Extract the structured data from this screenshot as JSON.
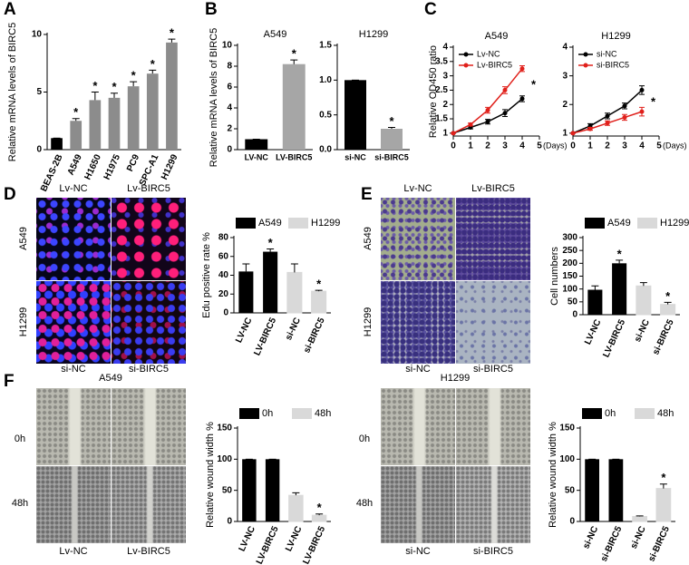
{
  "figure": {
    "panel_letters": [
      "A",
      "B",
      "C",
      "D",
      "E",
      "F"
    ],
    "image_groups": [
      {
        "columns": [
          "Lv-NC",
          "Lv-BIRC5"
        ],
        "rows": [
          "A549",
          "H1299"
        ],
        "bottom": [
          "si-NC",
          "si-BIRC5"
        ]
      },
      {
        "columns": [
          "Lv-NC",
          "Lv-BIRC5"
        ],
        "rows": [
          "A549",
          "H1299"
        ],
        "bottom": [
          "si-NC",
          "si-BIRC5"
        ]
      },
      {
        "title": "A549",
        "rows": [
          "0h",
          "48h"
        ],
        "bottom": [
          "Lv-NC",
          "Lv-BIRC5"
        ]
      },
      {
        "title": "H1299",
        "rows": [
          "0h",
          "48h"
        ],
        "bottom": [
          "si-NC",
          "si-BIRC5"
        ]
      }
    ]
  },
  "chart_data": [
    {
      "type": "bar",
      "ylabel": "Relative mRNA levels of BIRC5",
      "categories": [
        "BEAS-2B",
        "A549",
        "H1650",
        "H1975",
        "PC9",
        "SPC-A1",
        "H1299"
      ],
      "values": [
        1,
        2.5,
        4.3,
        4.5,
        5.5,
        6.6,
        9.3
      ],
      "errors": [
        0,
        0.2,
        0.7,
        0.4,
        0.4,
        0.3,
        0.3
      ],
      "annotations": [
        null,
        "*",
        "*",
        "*",
        "*",
        "*",
        "*"
      ],
      "colors": [
        "#000000",
        "#8c8c8c",
        "#8c8c8c",
        "#8c8c8c",
        "#8c8c8c",
        "#8c8c8c",
        "#8c8c8c"
      ],
      "ylim": [
        0,
        10
      ],
      "yticks": [
        0,
        5,
        10
      ]
    },
    {
      "type": "bar",
      "title": "A549",
      "ylabel": "Relative mRNA levels of BIRC5",
      "categories": [
        "LV-NC",
        "LV-BIRC5"
      ],
      "values": [
        1,
        8.2
      ],
      "errors": [
        0,
        0.4
      ],
      "annotations": [
        null,
        "*"
      ],
      "colors": [
        "#000000",
        "#a6a6a6"
      ],
      "ylim": [
        0,
        10
      ],
      "yticks": [
        0,
        2,
        4,
        6,
        8,
        10
      ]
    },
    {
      "type": "bar",
      "title": "H1299",
      "categories": [
        "si-NC",
        "si-BIRC5"
      ],
      "values": [
        1,
        0.3
      ],
      "errors": [
        0,
        0.02
      ],
      "annotations": [
        null,
        "*"
      ],
      "colors": [
        "#000000",
        "#a6a6a6"
      ],
      "ylim": [
        0,
        1.5
      ],
      "yticks": [
        {
          "value": 0,
          "label": "0.0"
        },
        0.5,
        {
          "value": 1,
          "label": "1.0"
        },
        1.5
      ]
    },
    {
      "type": "line",
      "title": "A549",
      "ylabel": "Relative OD450 ratio",
      "xlabel": "(Days)",
      "annotation": "*",
      "x": [
        0,
        1,
        2,
        3,
        4
      ],
      "xlim": [
        0,
        5
      ],
      "xticks": [
        0,
        1,
        2,
        3,
        4,
        5
      ],
      "ylim": [
        0.9,
        4
      ],
      "yticks": [
        1,
        1.5,
        2,
        2.5,
        3,
        3.5,
        4
      ],
      "legend": "upper left",
      "series": [
        {
          "name": "Lv-NC",
          "color": "#000000",
          "values": [
            1,
            1.2,
            1.4,
            1.7,
            2.2
          ],
          "errors": [
            0,
            0.05,
            0.08,
            0.12,
            0.1
          ]
        },
        {
          "name": "Lv-BIRC5",
          "color": "#e0201b",
          "values": [
            1,
            1.3,
            1.8,
            2.5,
            3.25
          ],
          "errors": [
            0,
            0.05,
            0.1,
            0.12,
            0.1
          ]
        }
      ]
    },
    {
      "type": "line",
      "title": "H1299",
      "xlabel": "(Days)",
      "annotation": "*",
      "x": [
        0,
        1,
        2,
        3,
        4
      ],
      "xlim": [
        0,
        5
      ],
      "xticks": [
        0,
        1,
        2,
        3,
        4,
        5
      ],
      "ylim": [
        0.9,
        4
      ],
      "yticks": [
        1,
        2,
        3,
        4
      ],
      "legend": "upper left",
      "series": [
        {
          "name": "si-NC",
          "color": "#000000",
          "values": [
            1,
            1.25,
            1.6,
            1.95,
            2.5
          ],
          "errors": [
            0,
            0.08,
            0.1,
            0.1,
            0.15
          ]
        },
        {
          "name": "si-BIRC5",
          "color": "#e0201b",
          "values": [
            1,
            1.15,
            1.35,
            1.55,
            1.75
          ],
          "errors": [
            0,
            0.05,
            0.08,
            0.1,
            0.15
          ]
        }
      ]
    },
    {
      "type": "bar",
      "ylabel": "Edu positive rate %",
      "legend": "top",
      "categories": [
        "LV-NC",
        "LV-BIRC5",
        "si-NC",
        "si-BIRC5"
      ],
      "ylim": [
        0,
        80
      ],
      "yticks": [
        0,
        20,
        40,
        60,
        80
      ],
      "series": [
        {
          "name": "A549",
          "color": "#000000",
          "values": [
            44,
            65,
            null,
            null
          ],
          "errors": [
            8,
            3,
            null,
            null
          ],
          "annotations": [
            null,
            "*",
            null,
            null
          ]
        },
        {
          "name": "H1299",
          "color": "#d9d9d9",
          "values": [
            null,
            null,
            43,
            23
          ],
          "errors": [
            null,
            null,
            9,
            1
          ],
          "annotations": [
            null,
            null,
            null,
            "*"
          ]
        }
      ]
    },
    {
      "type": "bar",
      "ylabel": "Cell numbers",
      "legend": "top",
      "categories": [
        "LV-NC",
        "LV-BIRC5",
        "si-NC",
        "si-BIRC5"
      ],
      "ylim": [
        0,
        300
      ],
      "yticks": [
        0,
        50,
        100,
        150,
        200,
        250,
        300
      ],
      "series": [
        {
          "name": "A549",
          "color": "#000000",
          "values": [
            97,
            200,
            null,
            null
          ],
          "errors": [
            15,
            12,
            null,
            null
          ],
          "annotations": [
            null,
            "*",
            null,
            null
          ]
        },
        {
          "name": "H1299",
          "color": "#d9d9d9",
          "values": [
            null,
            null,
            112,
            40
          ],
          "errors": [
            null,
            null,
            13,
            8
          ],
          "annotations": [
            null,
            null,
            null,
            "*"
          ]
        }
      ]
    },
    {
      "type": "bar",
      "ylabel": "Relative wound width %",
      "legend": "top",
      "categories": [
        "LV-NC",
        "LV-BIRC5",
        "LV-NC",
        "LV-BIRC5"
      ],
      "ylim": [
        0,
        150
      ],
      "yticks": [
        0,
        50,
        100,
        150
      ],
      "series": [
        {
          "name": "0h",
          "color": "#000000",
          "values": [
            100,
            100,
            null,
            null
          ],
          "errors": [
            0,
            0,
            null,
            null
          ]
        },
        {
          "name": "48h",
          "color": "#d9d9d9",
          "values": [
            null,
            null,
            42,
            10
          ],
          "errors": [
            null,
            null,
            4,
            2
          ],
          "annotations": [
            null,
            null,
            null,
            "*"
          ]
        }
      ]
    },
    {
      "type": "bar",
      "ylabel": "Relative wound width %",
      "legend": "top",
      "categories": [
        "si-NC",
        "si-BIRC5",
        "si-NC",
        "si-BIRC5"
      ],
      "ylim": [
        0,
        150
      ],
      "yticks": [
        0,
        50,
        100,
        150
      ],
      "series": [
        {
          "name": "0h",
          "color": "#000000",
          "values": [
            100,
            100,
            null,
            null
          ],
          "errors": [
            0,
            0,
            null,
            null
          ]
        },
        {
          "name": "48h",
          "color": "#d9d9d9",
          "values": [
            null,
            null,
            8,
            53
          ],
          "errors": [
            null,
            null,
            1,
            7
          ],
          "annotations": [
            null,
            null,
            null,
            "*"
          ]
        }
      ]
    }
  ]
}
